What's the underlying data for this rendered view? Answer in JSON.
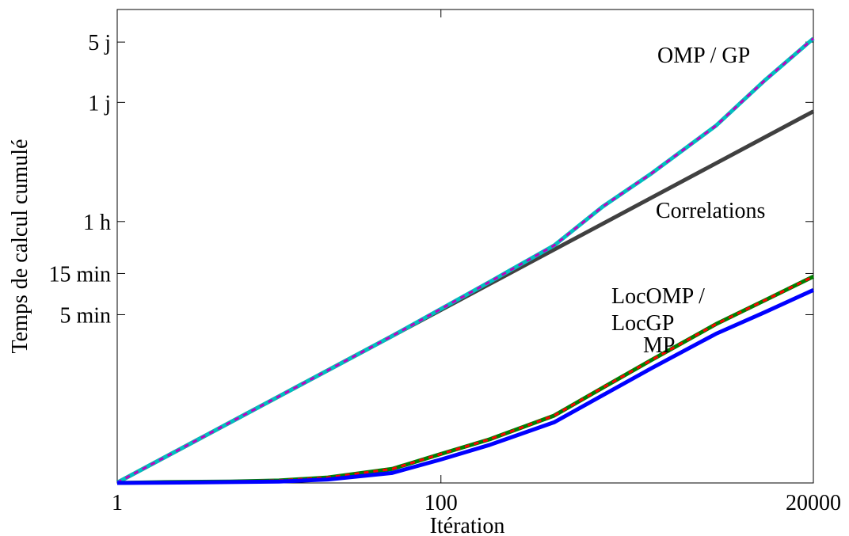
{
  "chart_data": {
    "type": "line",
    "log_x": true,
    "log_y": true,
    "xlabel": "Itération",
    "ylabel": "Temps de calcul cumulé",
    "x": [
      1,
      2,
      5,
      10,
      20,
      50,
      100,
      200,
      500,
      1000,
      2000,
      5000,
      10000,
      20000
    ],
    "xlim": [
      1,
      20000
    ],
    "xticks": [
      1,
      100,
      20000
    ],
    "ylim": [
      3.37,
      1030000
    ],
    "yticks": [
      {
        "value": 300,
        "label": "5 min"
      },
      {
        "value": 900,
        "label": "15 min"
      },
      {
        "value": 3600,
        "label": "1 h"
      },
      {
        "value": 86400,
        "label": "1 j"
      },
      {
        "value": 432000,
        "label": "5 j"
      }
    ],
    "series": [
      {
        "name": "Correlations",
        "color": "#404040",
        "values": [
          3.4,
          6.8,
          17,
          34,
          68,
          170,
          340,
          680,
          1700,
          3400,
          6800,
          17000,
          34000,
          68000
        ]
      },
      {
        "name": "OMP / GP",
        "color": "#00bfbf",
        "dash_color": "#bf00bf",
        "values": [
          3.4,
          6.8,
          17,
          34,
          68,
          170,
          350,
          720,
          1900,
          5370,
          13000,
          46400,
          155000,
          475000
        ]
      },
      {
        "name": "LocOMP / LocGP",
        "color": "#007f00",
        "dash_color": "#ff0000",
        "values": [
          3.37,
          3.45,
          3.5,
          3.6,
          3.9,
          4.9,
          7.3,
          10.8,
          20.3,
          42.8,
          89.5,
          233,
          439,
          830
        ]
      },
      {
        "name": "MP",
        "color": "#0000ff",
        "values": [
          3.37,
          3.4,
          3.45,
          3.5,
          3.7,
          4.4,
          6.3,
          9.3,
          17,
          35,
          72,
          180,
          320,
          579
        ]
      }
    ]
  }
}
